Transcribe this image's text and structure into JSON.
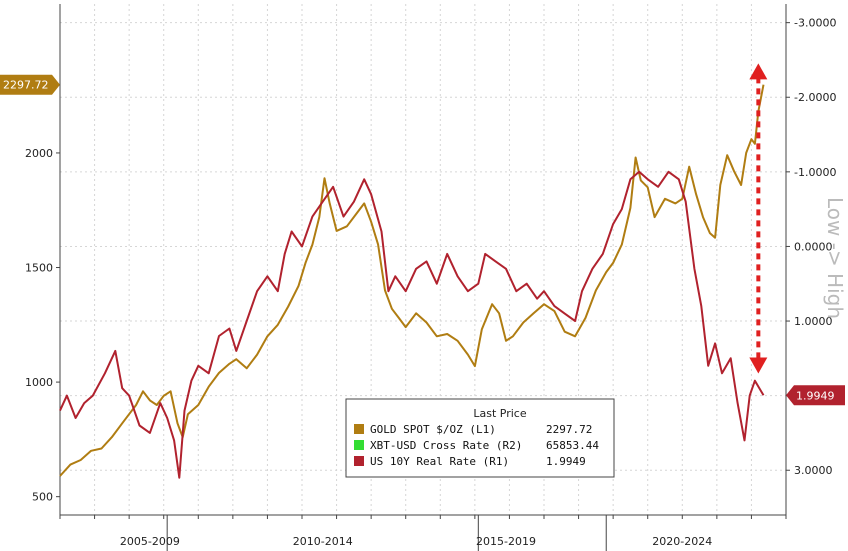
{
  "chart_data": {
    "type": "line",
    "title": "",
    "left_axis": {
      "ylim": [
        420,
        2650
      ],
      "ticks": [
        500,
        1000,
        1500,
        2000
      ]
    },
    "right_axis": {
      "inverted": true,
      "ylim": [
        -3.25,
        3.6
      ],
      "ticks": [
        -3.0,
        -2.0,
        -1.0,
        0.0,
        1.0,
        2.0,
        3.0
      ],
      "tick_labels": [
        "-3.0000",
        "-2.0000",
        "-1.0000",
        "0.0000",
        "1.0000",
        "2.0000",
        "3.0000"
      ],
      "side_label": "Low -> High"
    },
    "x_range": [
      2004.0,
      2025.0
    ],
    "period_labels": [
      {
        "label": "2005-2009",
        "center": 2006.6
      },
      {
        "label": "2010-2014",
        "center": 2011.6
      },
      {
        "label": "2015-2019",
        "center": 2016.9
      },
      {
        "label": "2020-2024",
        "center": 2022.0
      }
    ],
    "period_separators": [
      2007.1,
      2016.1,
      2019.8
    ],
    "grid": true,
    "legend_position": "bottom-center",
    "legend": {
      "title": "Last Price",
      "entries": [
        {
          "name": "GOLD SPOT $/OZ  (L1)",
          "value": "2297.72",
          "color": "#b07d12"
        },
        {
          "name": "XBT-USD Cross Rate  (R2)",
          "value": "65853.44",
          "color": "#33dd33"
        },
        {
          "name": "US 10Y Real Rate  (R1)",
          "value": "1.9949",
          "color": "#b1222e"
        }
      ]
    },
    "last_value_tags": [
      {
        "text": "2297.72",
        "axis": "left",
        "value": 2297.72,
        "color": "#b07d12"
      },
      {
        "text": "1.9949",
        "axis": "right",
        "value": 1.9949,
        "color": "#b1222e"
      }
    ],
    "annotation": {
      "type": "double-arrow",
      "color": "#e02020",
      "x": 2024.2,
      "from_right": -2.4,
      "to_right": 1.65
    },
    "series": [
      {
        "name": "GOLD SPOT $/OZ (L1)",
        "axis": "left",
        "color": "#b07d12",
        "points": [
          [
            2004.0,
            590
          ],
          [
            2004.3,
            640
          ],
          [
            2004.6,
            660
          ],
          [
            2004.9,
            700
          ],
          [
            2005.2,
            710
          ],
          [
            2005.5,
            760
          ],
          [
            2005.8,
            820
          ],
          [
            2006.0,
            860
          ],
          [
            2006.2,
            900
          ],
          [
            2006.4,
            960
          ],
          [
            2006.6,
            920
          ],
          [
            2006.8,
            900
          ],
          [
            2007.0,
            940
          ],
          [
            2007.2,
            960
          ],
          [
            2007.4,
            820
          ],
          [
            2007.55,
            760
          ],
          [
            2007.7,
            860
          ],
          [
            2008.0,
            900
          ],
          [
            2008.3,
            980
          ],
          [
            2008.6,
            1040
          ],
          [
            2008.9,
            1080
          ],
          [
            2009.1,
            1100
          ],
          [
            2009.4,
            1060
          ],
          [
            2009.7,
            1120
          ],
          [
            2010.0,
            1200
          ],
          [
            2010.3,
            1250
          ],
          [
            2010.6,
            1330
          ],
          [
            2010.9,
            1420
          ],
          [
            2011.1,
            1520
          ],
          [
            2011.3,
            1600
          ],
          [
            2011.5,
            1720
          ],
          [
            2011.65,
            1890
          ],
          [
            2011.8,
            1780
          ],
          [
            2012.0,
            1660
          ],
          [
            2012.3,
            1680
          ],
          [
            2012.6,
            1740
          ],
          [
            2012.8,
            1780
          ],
          [
            2013.0,
            1700
          ],
          [
            2013.2,
            1600
          ],
          [
            2013.4,
            1400
          ],
          [
            2013.6,
            1320
          ],
          [
            2013.8,
            1280
          ],
          [
            2014.0,
            1240
          ],
          [
            2014.3,
            1300
          ],
          [
            2014.6,
            1260
          ],
          [
            2014.9,
            1200
          ],
          [
            2015.2,
            1210
          ],
          [
            2015.5,
            1180
          ],
          [
            2015.8,
            1120
          ],
          [
            2016.0,
            1070
          ],
          [
            2016.2,
            1230
          ],
          [
            2016.5,
            1340
          ],
          [
            2016.7,
            1300
          ],
          [
            2016.9,
            1180
          ],
          [
            2017.1,
            1200
          ],
          [
            2017.4,
            1260
          ],
          [
            2017.7,
            1300
          ],
          [
            2018.0,
            1340
          ],
          [
            2018.3,
            1310
          ],
          [
            2018.6,
            1220
          ],
          [
            2018.9,
            1200
          ],
          [
            2019.2,
            1280
          ],
          [
            2019.5,
            1400
          ],
          [
            2019.8,
            1480
          ],
          [
            2020.0,
            1520
          ],
          [
            2020.25,
            1600
          ],
          [
            2020.5,
            1760
          ],
          [
            2020.65,
            1980
          ],
          [
            2020.8,
            1880
          ],
          [
            2021.0,
            1850
          ],
          [
            2021.2,
            1720
          ],
          [
            2021.5,
            1800
          ],
          [
            2021.8,
            1780
          ],
          [
            2022.0,
            1800
          ],
          [
            2022.2,
            1940
          ],
          [
            2022.4,
            1820
          ],
          [
            2022.6,
            1720
          ],
          [
            2022.8,
            1650
          ],
          [
            2022.95,
            1630
          ],
          [
            2023.1,
            1860
          ],
          [
            2023.3,
            1990
          ],
          [
            2023.5,
            1920
          ],
          [
            2023.7,
            1860
          ],
          [
            2023.85,
            2000
          ],
          [
            2024.0,
            2060
          ],
          [
            2024.1,
            2040
          ],
          [
            2024.2,
            2180
          ],
          [
            2024.35,
            2297.72
          ]
        ]
      },
      {
        "name": "US 10Y Real Rate (R1)",
        "axis": "right",
        "color": "#b1222e",
        "points": [
          [
            2004.0,
            2.2
          ],
          [
            2004.2,
            2.0
          ],
          [
            2004.45,
            2.3
          ],
          [
            2004.7,
            2.1
          ],
          [
            2004.95,
            2.0
          ],
          [
            2005.3,
            1.7
          ],
          [
            2005.6,
            1.4
          ],
          [
            2005.8,
            1.9
          ],
          [
            2006.0,
            2.0
          ],
          [
            2006.3,
            2.4
          ],
          [
            2006.6,
            2.5
          ],
          [
            2006.9,
            2.1
          ],
          [
            2007.1,
            2.3
          ],
          [
            2007.3,
            2.6
          ],
          [
            2007.45,
            3.1
          ],
          [
            2007.6,
            2.2
          ],
          [
            2007.8,
            1.8
          ],
          [
            2008.0,
            1.6
          ],
          [
            2008.3,
            1.7
          ],
          [
            2008.6,
            1.2
          ],
          [
            2008.9,
            1.1
          ],
          [
            2009.1,
            1.4
          ],
          [
            2009.4,
            1.0
          ],
          [
            2009.7,
            0.6
          ],
          [
            2010.0,
            0.4
          ],
          [
            2010.3,
            0.6
          ],
          [
            2010.5,
            0.1
          ],
          [
            2010.7,
            -0.2
          ],
          [
            2011.0,
            0.0
          ],
          [
            2011.3,
            -0.4
          ],
          [
            2011.6,
            -0.6
          ],
          [
            2011.9,
            -0.8
          ],
          [
            2012.2,
            -0.4
          ],
          [
            2012.5,
            -0.6
          ],
          [
            2012.8,
            -0.9
          ],
          [
            2013.0,
            -0.7
          ],
          [
            2013.3,
            -0.2
          ],
          [
            2013.5,
            0.6
          ],
          [
            2013.7,
            0.4
          ],
          [
            2014.0,
            0.6
          ],
          [
            2014.3,
            0.3
          ],
          [
            2014.6,
            0.2
          ],
          [
            2014.9,
            0.5
          ],
          [
            2015.2,
            0.1
          ],
          [
            2015.5,
            0.4
          ],
          [
            2015.8,
            0.6
          ],
          [
            2016.1,
            0.5
          ],
          [
            2016.3,
            0.1
          ],
          [
            2016.6,
            0.2
          ],
          [
            2016.9,
            0.3
          ],
          [
            2017.2,
            0.6
          ],
          [
            2017.5,
            0.5
          ],
          [
            2017.8,
            0.7
          ],
          [
            2018.0,
            0.6
          ],
          [
            2018.3,
            0.8
          ],
          [
            2018.6,
            0.9
          ],
          [
            2018.9,
            1.0
          ],
          [
            2019.1,
            0.6
          ],
          [
            2019.4,
            0.3
          ],
          [
            2019.7,
            0.1
          ],
          [
            2020.0,
            -0.3
          ],
          [
            2020.25,
            -0.5
          ],
          [
            2020.5,
            -0.9
          ],
          [
            2020.75,
            -1.0
          ],
          [
            2021.0,
            -0.9
          ],
          [
            2021.3,
            -0.8
          ],
          [
            2021.6,
            -1.0
          ],
          [
            2021.9,
            -0.9
          ],
          [
            2022.1,
            -0.6
          ],
          [
            2022.35,
            0.3
          ],
          [
            2022.55,
            0.8
          ],
          [
            2022.75,
            1.6
          ],
          [
            2022.95,
            1.3
          ],
          [
            2023.15,
            1.7
          ],
          [
            2023.4,
            1.5
          ],
          [
            2023.6,
            2.1
          ],
          [
            2023.8,
            2.6
          ],
          [
            2023.95,
            2.0
          ],
          [
            2024.1,
            1.8
          ],
          [
            2024.35,
            1.9949
          ]
        ]
      }
    ]
  }
}
